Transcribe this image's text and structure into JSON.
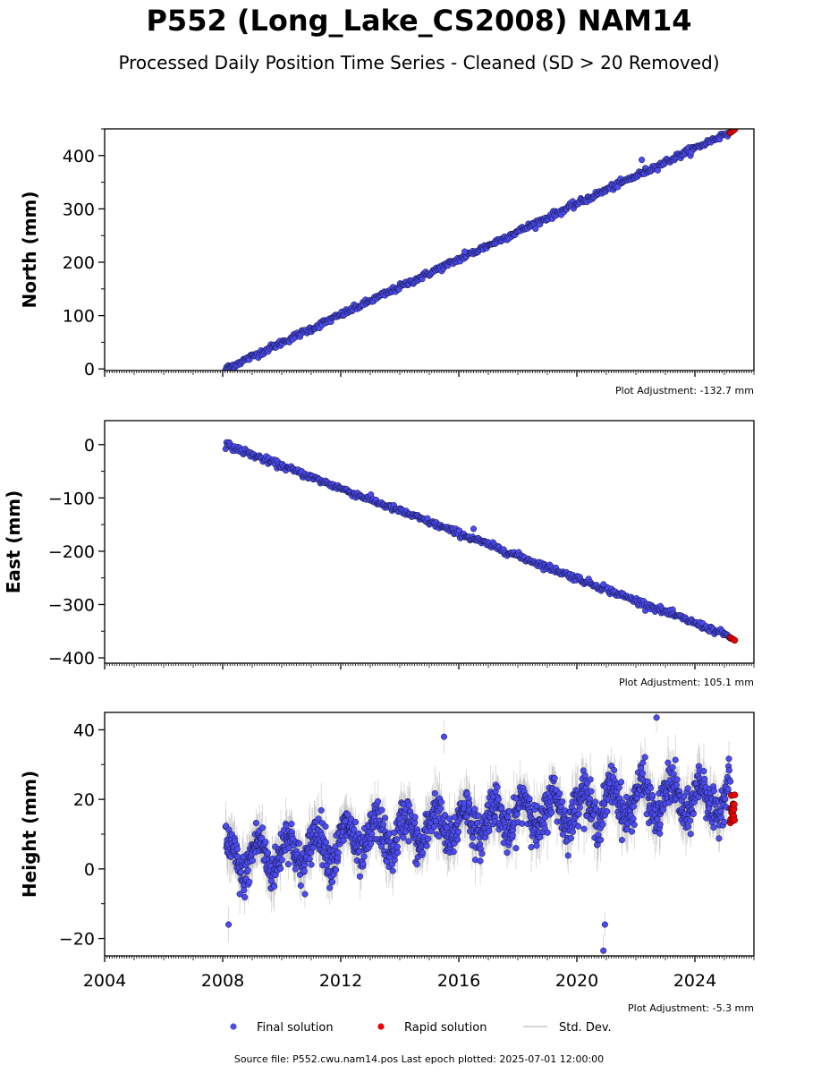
{
  "title": "P552 (Long_Lake_CS2008) NAM14",
  "subtitle": "Processed Daily Position Time Series - Cleaned (SD > 20 Removed)",
  "source": "Source file: P552.cwu.nam14.pos  Last epoch plotted: 2025-07-01 12:00:00",
  "legend": {
    "final": "Final solution",
    "rapid": "Rapid solution",
    "stddev": "Std. Dev."
  },
  "colors": {
    "final": "#4b4bf0",
    "rapid": "#ee0000",
    "stddev": "#b0b0b0"
  },
  "chart_data": [
    {
      "type": "scatter",
      "name": "north",
      "ylabel": "North (mm)",
      "ylim": [
        -3,
        450
      ],
      "yticks": [
        0,
        100,
        200,
        300,
        400
      ],
      "xlim": [
        2004,
        2026
      ],
      "adjustment": "Plot Adjustment: -132.7 mm",
      "final_start": [
        2008.1,
        0
      ],
      "final_end": [
        2025.2,
        445
      ],
      "rapid": [
        2025.2,
        2025.35
      ],
      "rapid_y": [
        443,
        449
      ],
      "noise": 3,
      "outliers": [
        [
          2016.2,
          220
        ],
        [
          2022.2,
          392
        ]
      ]
    },
    {
      "type": "scatter",
      "name": "east",
      "ylabel": "East (mm)",
      "ylim": [
        -410,
        45
      ],
      "yticks": [
        0,
        -100,
        -200,
        -300,
        -400
      ],
      "xlim": [
        2004,
        2026
      ],
      "adjustment": "Plot Adjustment: 105.1 mm",
      "final_start": [
        2008.1,
        0
      ],
      "final_end": [
        2025.2,
        -360
      ],
      "rapid": [
        2025.2,
        2025.35
      ],
      "rapid_y": [
        -362,
        -367
      ],
      "noise": 3,
      "outliers": [
        [
          2016.5,
          -158
        ],
        [
          2020.9,
          -262
        ]
      ]
    },
    {
      "type": "scatter",
      "name": "height",
      "ylabel": "Height (mm)",
      "ylim": [
        -25,
        45
      ],
      "yticks": [
        -20,
        0,
        20,
        40
      ],
      "xlim": [
        2004,
        2026
      ],
      "xticks": [
        2004,
        2008,
        2012,
        2016,
        2020,
        2024
      ],
      "adjustment": "Plot Adjustment: -5.3 mm",
      "trend": [
        [
          2008.1,
          2
        ],
        [
          2016,
          13
        ],
        [
          2022,
          20
        ],
        [
          2025.3,
          20
        ]
      ],
      "seasonal_amp": 5,
      "noise": 3,
      "rapid": [
        2025.2,
        2025.35
      ],
      "rapid_y": [
        13,
        22
      ],
      "outliers": [
        [
          2015.5,
          38
        ],
        [
          2020.9,
          -23.5
        ],
        [
          2020.95,
          -16
        ],
        [
          2022.7,
          43.5
        ],
        [
          2008.2,
          -16
        ]
      ]
    }
  ]
}
